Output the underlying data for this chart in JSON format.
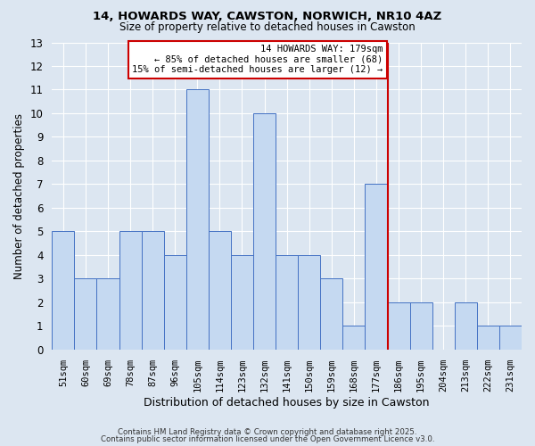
{
  "title1": "14, HOWARDS WAY, CAWSTON, NORWICH, NR10 4AZ",
  "title2": "Size of property relative to detached houses in Cawston",
  "xlabel": "Distribution of detached houses by size in Cawston",
  "ylabel": "Number of detached properties",
  "categories": [
    "51sqm",
    "60sqm",
    "69sqm",
    "78sqm",
    "87sqm",
    "96sqm",
    "105sqm",
    "114sqm",
    "123sqm",
    "132sqm",
    "141sqm",
    "150sqm",
    "159sqm",
    "168sqm",
    "177sqm",
    "186sqm",
    "195sqm",
    "204sqm",
    "213sqm",
    "222sqm",
    "231sqm"
  ],
  "values": [
    5,
    3,
    3,
    5,
    5,
    4,
    11,
    5,
    4,
    10,
    4,
    4,
    3,
    1,
    7,
    2,
    2,
    0,
    2,
    1,
    1
  ],
  "bar_color": "#c5d9f1",
  "bar_edge_color": "#4472c4",
  "background_color": "#dce6f1",
  "grid_color": "#ffffff",
  "red_line_x": 14.5,
  "annotation_line1": "14 HOWARDS WAY: 179sqm",
  "annotation_line2": "← 85% of detached houses are smaller (68)",
  "annotation_line3": "15% of semi-detached houses are larger (12) →",
  "annotation_box_color": "#ffffff",
  "annotation_box_edge_color": "#cc0000",
  "footer1": "Contains HM Land Registry data © Crown copyright and database right 2025.",
  "footer2": "Contains public sector information licensed under the Open Government Licence v3.0.",
  "ylim": [
    0,
    13
  ],
  "yticks": [
    0,
    1,
    2,
    3,
    4,
    5,
    6,
    7,
    8,
    9,
    10,
    11,
    12,
    13
  ]
}
